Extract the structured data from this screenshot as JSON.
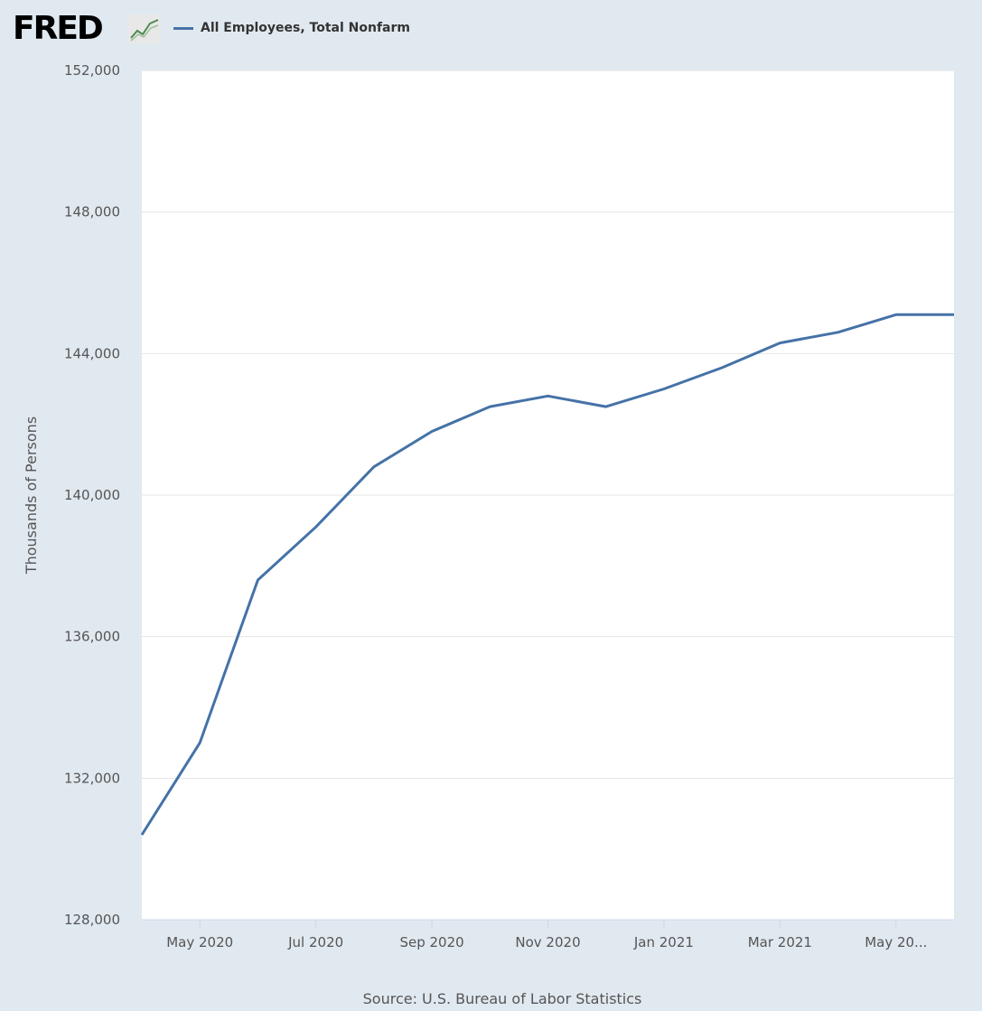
{
  "header": {
    "logo_text": "FRED",
    "legend_label": "All Employees, Total Nonfarm"
  },
  "source": "Source: U.S. Bureau of Labor Statistics",
  "colors": {
    "background": "#e1e9f0",
    "plot_area": "#ffffff",
    "series": "#4572a7",
    "grid": "#e6e6e6"
  },
  "chart_data": {
    "type": "line",
    "title": "",
    "xlabel": "",
    "ylabel": "Thousands of Persons",
    "ylim": [
      128000,
      152000
    ],
    "y_ticks": [
      128000,
      132000,
      136000,
      140000,
      144000,
      148000,
      152000
    ],
    "y_tick_labels": [
      "128,000",
      "132,000",
      "136,000",
      "140,000",
      "144,000",
      "148,000",
      "152,000"
    ],
    "x_range": [
      "2020-04",
      "2021-06"
    ],
    "x_ticks": [
      "2020-05",
      "2020-07",
      "2020-09",
      "2020-11",
      "2021-01",
      "2021-03",
      "2021-05"
    ],
    "x_tick_labels": [
      "May 2020",
      "Jul 2020",
      "Sep 2020",
      "Nov 2020",
      "Jan 2021",
      "Mar 2021",
      "May 20..."
    ],
    "grid": true,
    "legend": "top-left",
    "series": [
      {
        "name": "All Employees, Total Nonfarm",
        "x": [
          "2020-04",
          "2020-05",
          "2020-06",
          "2020-07",
          "2020-08",
          "2020-09",
          "2020-10",
          "2020-11",
          "2020-12",
          "2021-01",
          "2021-02",
          "2021-03",
          "2021-04",
          "2021-05",
          "2021-06"
        ],
        "values": [
          130400,
          133000,
          137600,
          139100,
          140800,
          141800,
          142500,
          142800,
          142500,
          143000,
          143600,
          144300,
          144600,
          145100,
          145100
        ]
      }
    ]
  }
}
